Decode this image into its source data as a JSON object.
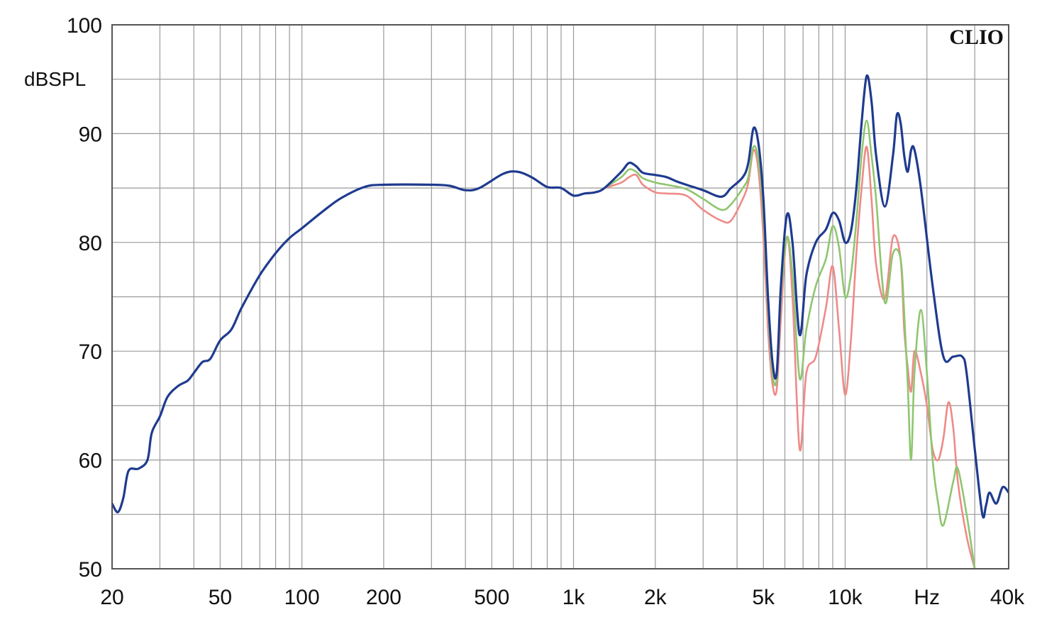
{
  "chart_data": {
    "type": "line",
    "brand": "CLIO",
    "ylabel": "dBSPL",
    "xunit": "Hz",
    "x_scale": "log",
    "xlim": [
      20,
      40000
    ],
    "ylim": [
      50,
      100
    ],
    "grid": true,
    "x_major_ticks": [
      {
        "value": 20,
        "label": "20"
      },
      {
        "value": 50,
        "label": "50"
      },
      {
        "value": 100,
        "label": "100"
      },
      {
        "value": 200,
        "label": "200"
      },
      {
        "value": 500,
        "label": "500"
      },
      {
        "value": 1000,
        "label": "1k"
      },
      {
        "value": 2000,
        "label": "2k"
      },
      {
        "value": 5000,
        "label": "5k"
      },
      {
        "value": 10000,
        "label": "10k"
      },
      {
        "value": 40000,
        "label": "40k"
      }
    ],
    "y_major_ticks": [
      {
        "value": 50,
        "label": "50"
      },
      {
        "value": 60,
        "label": "60"
      },
      {
        "value": 70,
        "label": "70"
      },
      {
        "value": 80,
        "label": "80"
      },
      {
        "value": 90,
        "label": "90"
      },
      {
        "value": 100,
        "label": "100"
      }
    ],
    "series": [
      {
        "color": "#1f3b8f",
        "points": [
          [
            20,
            56
          ],
          [
            21,
            55.2
          ],
          [
            22,
            56.5
          ],
          [
            23,
            59
          ],
          [
            25,
            59.2
          ],
          [
            27,
            60
          ],
          [
            28,
            62.5
          ],
          [
            30,
            64
          ],
          [
            32,
            65.8
          ],
          [
            35,
            66.8
          ],
          [
            38,
            67.3
          ],
          [
            40,
            68
          ],
          [
            43,
            69
          ],
          [
            46,
            69.3
          ],
          [
            50,
            71
          ],
          [
            55,
            72
          ],
          [
            60,
            74
          ],
          [
            70,
            77
          ],
          [
            80,
            79
          ],
          [
            90,
            80.4
          ],
          [
            100,
            81.3
          ],
          [
            120,
            82.9
          ],
          [
            140,
            84.1
          ],
          [
            170,
            85.1
          ],
          [
            200,
            85.3
          ],
          [
            300,
            85.3
          ],
          [
            350,
            85.2
          ],
          [
            400,
            84.8
          ],
          [
            450,
            85
          ],
          [
            550,
            86.3
          ],
          [
            620,
            86.5
          ],
          [
            700,
            86
          ],
          [
            800,
            85.1
          ],
          [
            900,
            85
          ],
          [
            1000,
            84.3
          ],
          [
            1100,
            84.5
          ],
          [
            1200,
            84.6
          ],
          [
            1300,
            85
          ],
          [
            1500,
            86.5
          ],
          [
            1600,
            87.3
          ],
          [
            1700,
            87
          ],
          [
            1800,
            86.4
          ],
          [
            2000,
            86.2
          ],
          [
            2200,
            86
          ],
          [
            2400,
            85.6
          ],
          [
            2600,
            85.3
          ],
          [
            3000,
            84.8
          ],
          [
            3500,
            84.2
          ],
          [
            3800,
            85
          ],
          [
            4200,
            86
          ],
          [
            4400,
            87.3
          ],
          [
            4600,
            90.5
          ],
          [
            4800,
            89
          ],
          [
            5000,
            84
          ],
          [
            5200,
            75
          ],
          [
            5400,
            69
          ],
          [
            5600,
            68
          ],
          [
            5800,
            76
          ],
          [
            6100,
            82.5
          ],
          [
            6400,
            80
          ],
          [
            6800,
            71.5
          ],
          [
            7200,
            77
          ],
          [
            7800,
            80
          ],
          [
            8500,
            81.2
          ],
          [
            9000,
            82.7
          ],
          [
            9500,
            82
          ],
          [
            10000,
            80
          ],
          [
            10500,
            81
          ],
          [
            11000,
            85
          ],
          [
            11500,
            91
          ],
          [
            12000,
            95.3
          ],
          [
            12500,
            93
          ],
          [
            13000,
            88
          ],
          [
            14000,
            83.3
          ],
          [
            15000,
            88
          ],
          [
            15500,
            91.7
          ],
          [
            16000,
            91
          ],
          [
            16500,
            88
          ],
          [
            17000,
            86.5
          ],
          [
            17500,
            88.5
          ],
          [
            18000,
            88.5
          ],
          [
            19000,
            85
          ],
          [
            21000,
            76
          ],
          [
            23000,
            69.5
          ],
          [
            25000,
            69.5
          ],
          [
            27000,
            69.5
          ],
          [
            28000,
            68
          ],
          [
            30000,
            61
          ],
          [
            32000,
            55
          ],
          [
            33000,
            55.8
          ],
          [
            34000,
            57
          ],
          [
            36000,
            56
          ],
          [
            38000,
            57.5
          ],
          [
            40000,
            57
          ]
        ]
      },
      {
        "color": "#8ec66f",
        "points": [
          [
            1300,
            85
          ],
          [
            1500,
            86
          ],
          [
            1600,
            86.7
          ],
          [
            1700,
            86.5
          ],
          [
            1800,
            85.9
          ],
          [
            2000,
            85.5
          ],
          [
            2200,
            85.3
          ],
          [
            2600,
            84.9
          ],
          [
            3000,
            84
          ],
          [
            3500,
            83
          ],
          [
            3800,
            83.5
          ],
          [
            4200,
            85
          ],
          [
            4400,
            86
          ],
          [
            4600,
            88.8
          ],
          [
            4800,
            87.5
          ],
          [
            5000,
            82.5
          ],
          [
            5200,
            74
          ],
          [
            5400,
            68
          ],
          [
            5600,
            67.5
          ],
          [
            5800,
            75
          ],
          [
            6100,
            80.5
          ],
          [
            6400,
            77
          ],
          [
            6800,
            67.5
          ],
          [
            7200,
            72
          ],
          [
            7800,
            76
          ],
          [
            8500,
            78.5
          ],
          [
            9000,
            81.5
          ],
          [
            9500,
            79.5
          ],
          [
            10000,
            75
          ],
          [
            10500,
            77
          ],
          [
            11000,
            82
          ],
          [
            11500,
            88
          ],
          [
            12000,
            91.2
          ],
          [
            12500,
            88
          ],
          [
            13000,
            84
          ],
          [
            14000,
            74.5
          ],
          [
            15000,
            79
          ],
          [
            16000,
            78.5
          ],
          [
            16500,
            73.5
          ],
          [
            17000,
            67
          ],
          [
            17500,
            60
          ],
          [
            18000,
            68
          ],
          [
            19000,
            73.8
          ],
          [
            20000,
            68
          ],
          [
            21000,
            60
          ],
          [
            22000,
            56
          ],
          [
            23000,
            54
          ],
          [
            25000,
            58
          ],
          [
            26000,
            59.2
          ],
          [
            28000,
            55
          ],
          [
            30000,
            50
          ]
        ]
      },
      {
        "color": "#ee8a88",
        "points": [
          [
            1300,
            85
          ],
          [
            1500,
            85.5
          ],
          [
            1600,
            86
          ],
          [
            1700,
            86.2
          ],
          [
            1800,
            85.3
          ],
          [
            2000,
            84.6
          ],
          [
            2200,
            84.5
          ],
          [
            2600,
            84.3
          ],
          [
            3000,
            83
          ],
          [
            3500,
            82
          ],
          [
            3800,
            82
          ],
          [
            4200,
            84
          ],
          [
            4400,
            85.5
          ],
          [
            4600,
            88.5
          ],
          [
            4800,
            86.5
          ],
          [
            5000,
            80.5
          ],
          [
            5200,
            72
          ],
          [
            5400,
            67
          ],
          [
            5600,
            66.5
          ],
          [
            5800,
            73
          ],
          [
            6100,
            80.5
          ],
          [
            6400,
            75
          ],
          [
            6800,
            61
          ],
          [
            7200,
            68
          ],
          [
            7800,
            69.5
          ],
          [
            8500,
            74
          ],
          [
            9000,
            77.8
          ],
          [
            9500,
            72
          ],
          [
            10000,
            66
          ],
          [
            10500,
            71
          ],
          [
            11000,
            79
          ],
          [
            11500,
            85
          ],
          [
            12000,
            88.8
          ],
          [
            12500,
            84
          ],
          [
            13000,
            78
          ],
          [
            14000,
            74.8
          ],
          [
            15000,
            80.5
          ],
          [
            16000,
            78.5
          ],
          [
            16500,
            72
          ],
          [
            17000,
            68.5
          ],
          [
            17500,
            66.3
          ],
          [
            18000,
            70
          ],
          [
            19000,
            68
          ],
          [
            20000,
            65
          ],
          [
            21000,
            61
          ],
          [
            22000,
            60
          ],
          [
            23000,
            62
          ],
          [
            24000,
            65.3
          ],
          [
            25000,
            63
          ],
          [
            26000,
            58
          ],
          [
            28000,
            53
          ],
          [
            30000,
            50
          ]
        ]
      }
    ]
  }
}
